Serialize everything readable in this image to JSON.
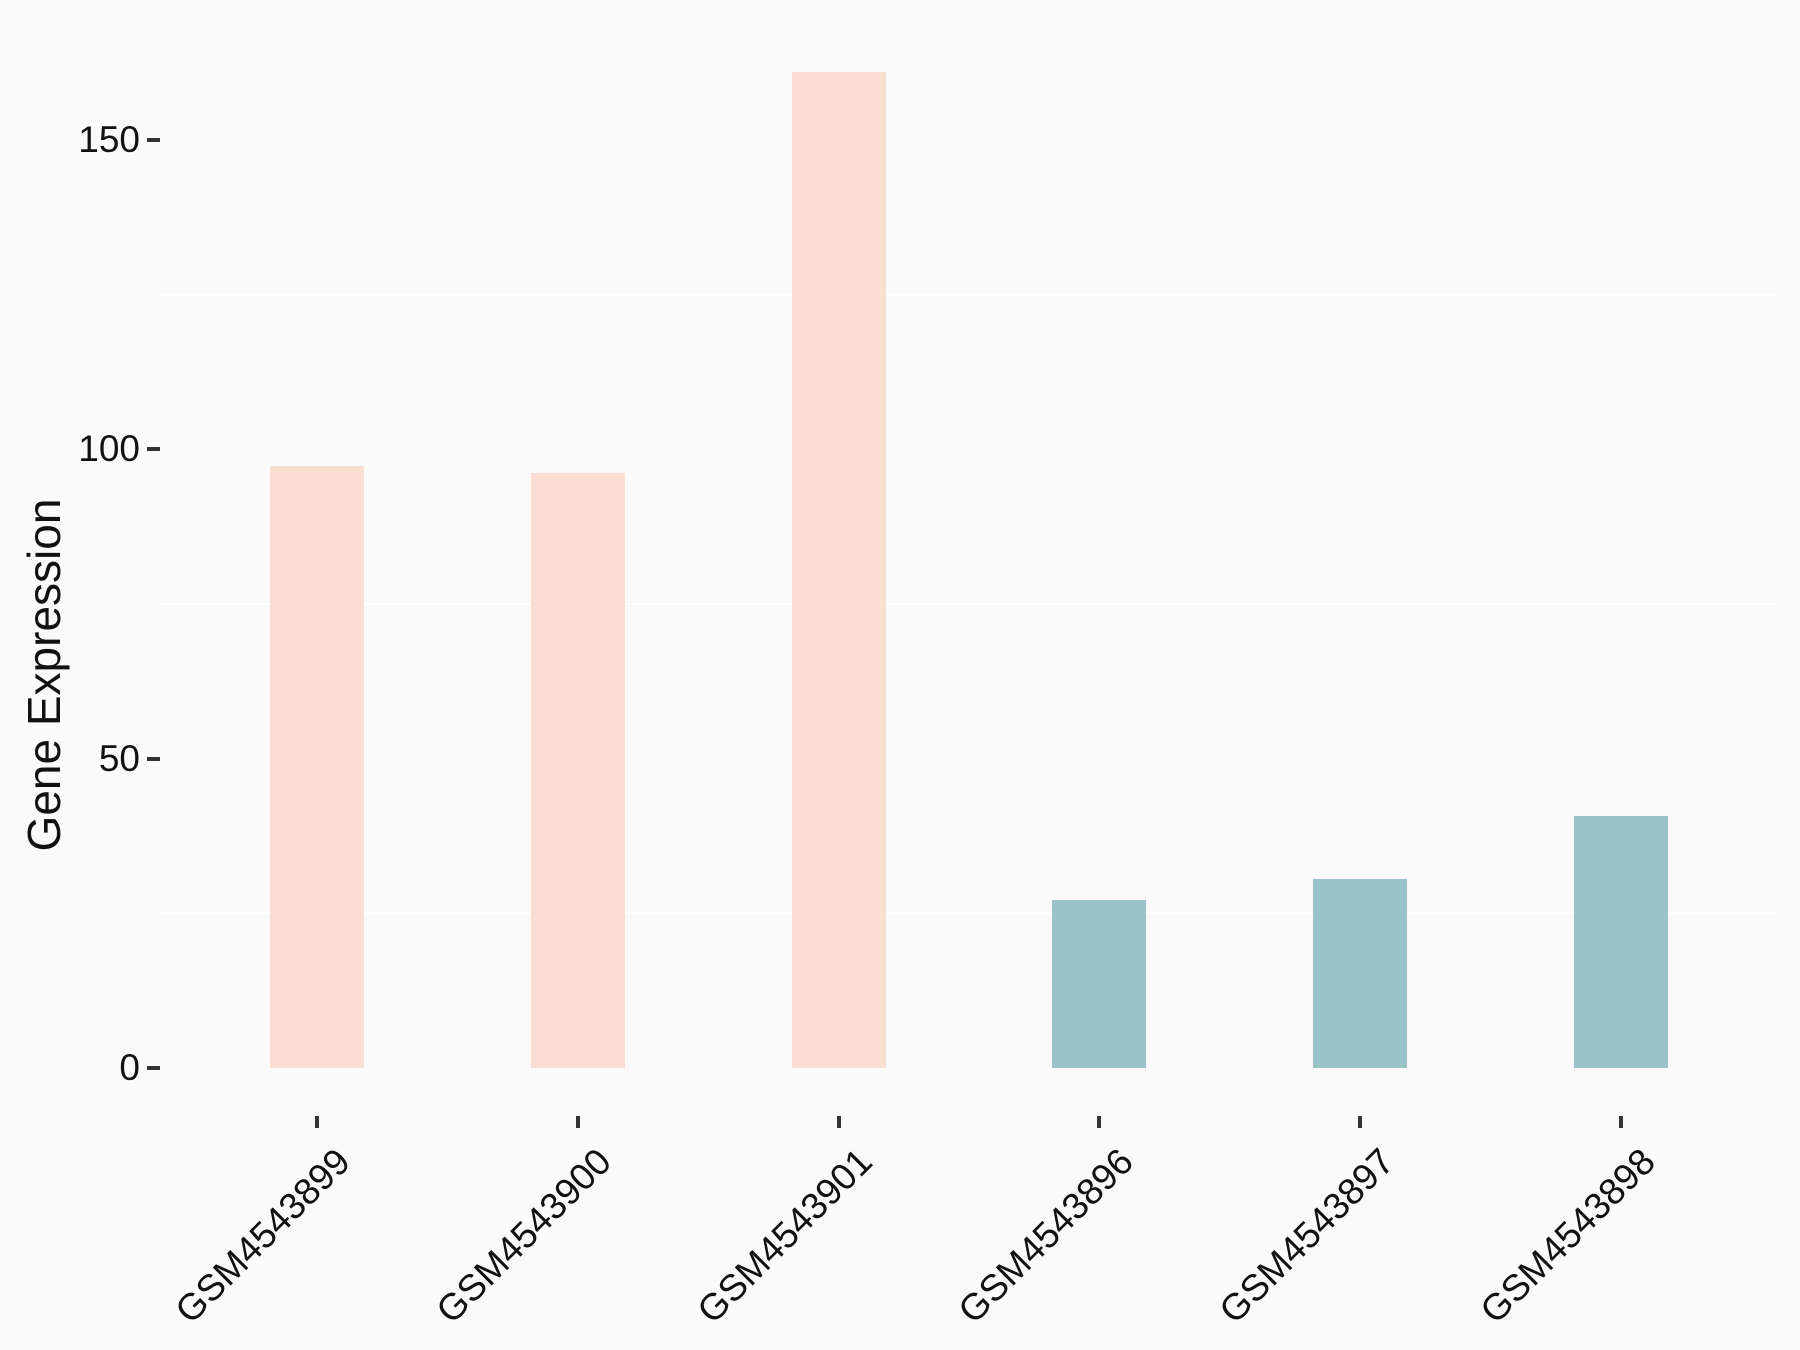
{
  "chart_data": {
    "type": "bar",
    "title": "",
    "xlabel": "",
    "ylabel": "Gene Expression",
    "categories": [
      "GSM4543899",
      "GSM4543900",
      "GSM4543901",
      "GSM4543896",
      "GSM4543897",
      "GSM4543898"
    ],
    "values": [
      97.3,
      96.2,
      161.0,
      27.2,
      30.5,
      40.7
    ],
    "bar_colors": [
      "#FBDED2",
      "#FBDED2",
      "#FBDED2",
      "#9AC3C7",
      "#9AC3C7",
      "#9AC3C7"
    ],
    "yticks": [
      0,
      50,
      100,
      150
    ],
    "ytick_labels": [
      "0",
      "50",
      "100",
      "150"
    ],
    "minor_gridlines": [
      25,
      75,
      125
    ],
    "ylim": [
      0,
      169
    ],
    "grid": "horizontal-minor-only",
    "legend_position": "none",
    "bar_width_fraction": 0.36,
    "x_label_rotation_deg": 45
  },
  "colors": {
    "background": "#FAFAFA",
    "gridline": "#FFFFFF",
    "axis_tick": "#333333",
    "text": "#111111",
    "group_a_fill": "#FBDED2",
    "group_b_fill": "#9AC3C7"
  }
}
